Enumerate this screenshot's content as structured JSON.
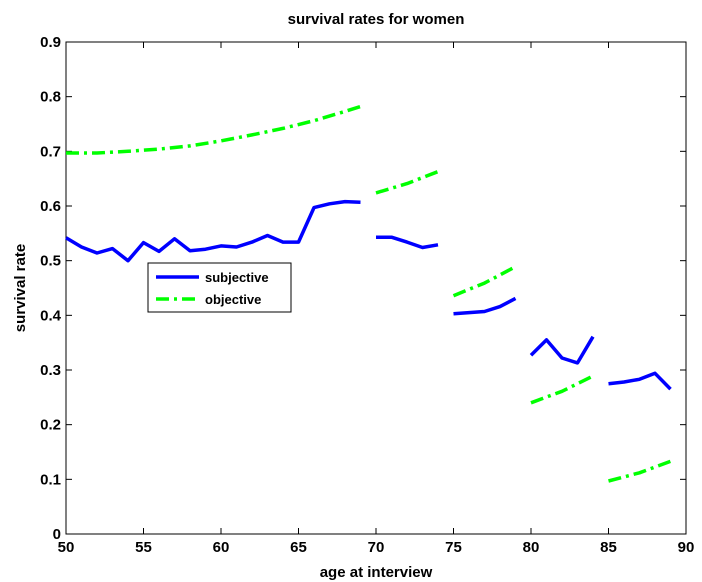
{
  "chart_data": {
    "type": "line",
    "title": "survival rates for women",
    "xlabel": "age at interview",
    "ylabel": "survival rate",
    "xlim": [
      50,
      90
    ],
    "ylim": [
      0,
      0.9
    ],
    "xticks": [
      50,
      55,
      60,
      65,
      70,
      75,
      80,
      85,
      90
    ],
    "yticks": [
      0,
      0.1,
      0.2,
      0.3,
      0.4,
      0.5,
      0.6,
      0.7,
      0.8,
      0.9
    ],
    "xtick_labels": [
      "50",
      "55",
      "60",
      "65",
      "70",
      "75",
      "80",
      "85",
      "90"
    ],
    "ytick_labels": [
      "0",
      "0.1",
      "0.2",
      "0.3",
      "0.4",
      "0.5",
      "0.6",
      "0.7",
      "0.8",
      "0.9"
    ],
    "grid": false,
    "legend_position": "left-middle",
    "series": [
      {
        "name": "subjective",
        "color": "#0000ff",
        "style": "solid",
        "segments": [
          {
            "x": [
              50,
              51,
              52,
              53,
              54,
              55,
              56,
              57,
              58,
              59,
              60,
              61,
              62,
              63,
              64,
              65,
              66,
              67,
              68,
              69
            ],
            "y": [
              0.542,
              0.525,
              0.514,
              0.522,
              0.5,
              0.533,
              0.517,
              0.54,
              0.518,
              0.521,
              0.527,
              0.525,
              0.534,
              0.546,
              0.534,
              0.534,
              0.597,
              0.604,
              0.608,
              0.607
            ]
          },
          {
            "x": [
              70,
              71,
              72,
              73,
              74
            ],
            "y": [
              0.543,
              0.543,
              0.534,
              0.524,
              0.529
            ]
          },
          {
            "x": [
              75,
              76,
              77,
              78,
              79
            ],
            "y": [
              0.403,
              0.405,
              0.407,
              0.416,
              0.431
            ]
          },
          {
            "x": [
              80,
              81,
              82,
              83,
              84
            ],
            "y": [
              0.327,
              0.355,
              0.322,
              0.313,
              0.361
            ]
          },
          {
            "x": [
              85,
              86,
              87,
              88,
              89
            ],
            "y": [
              0.275,
              0.278,
              0.283,
              0.294,
              0.265
            ]
          }
        ]
      },
      {
        "name": "objective",
        "color": "#00ff00",
        "style": "dash-dot",
        "segments": [
          {
            "x": [
              50,
              52,
              54,
              56,
              58,
              60,
              62,
              64,
              66,
              68,
              69
            ],
            "y": [
              0.697,
              0.697,
              0.7,
              0.704,
              0.71,
              0.719,
              0.73,
              0.742,
              0.756,
              0.773,
              0.782
            ]
          },
          {
            "x": [
              70,
              72,
              74
            ],
            "y": [
              0.624,
              0.641,
              0.663
            ]
          },
          {
            "x": [
              75,
              77,
              79
            ],
            "y": [
              0.436,
              0.459,
              0.489
            ]
          },
          {
            "x": [
              80,
              82,
              84
            ],
            "y": [
              0.24,
              0.261,
              0.289
            ]
          },
          {
            "x": [
              85,
              87,
              89
            ],
            "y": [
              0.097,
              0.112,
              0.133
            ]
          }
        ]
      }
    ]
  }
}
